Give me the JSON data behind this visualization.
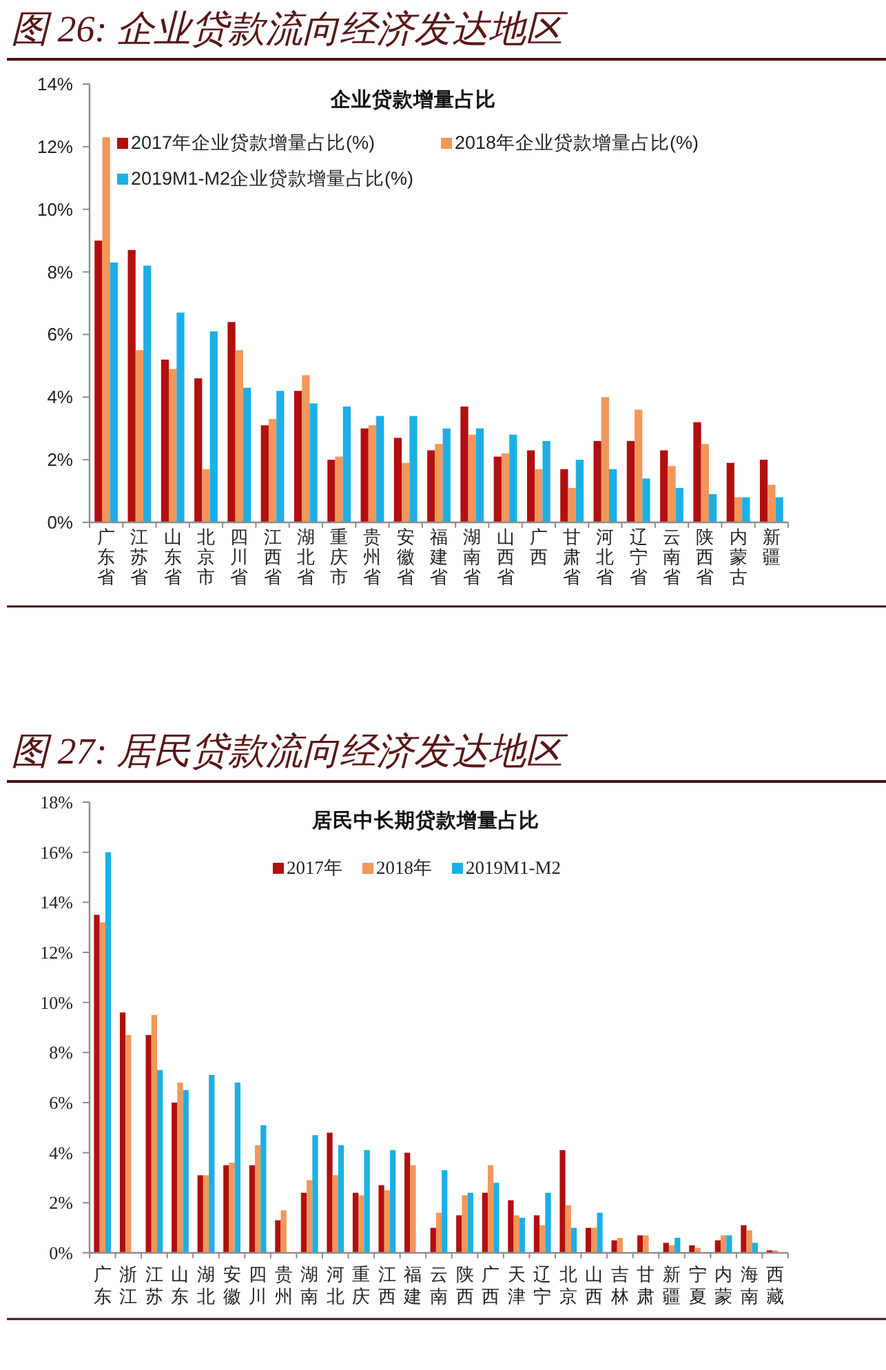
{
  "chart_data": [
    {
      "type": "bar",
      "title": "图 26: 企业贷款流向经济发达地区",
      "subtitle": "企业贷款增量占比",
      "categories": [
        "广东省",
        "江苏省",
        "山东省",
        "北京市",
        "四川省",
        "江西省",
        "湖北省",
        "重庆市",
        "贵州省",
        "安徽省",
        "福建省",
        "湖南省",
        "山西省",
        "广西",
        "甘肃省",
        "河北省",
        "辽宁省",
        "云南省",
        "陕西省",
        "内蒙古",
        "新疆"
      ],
      "series": [
        {
          "name": "2017年企业贷款增量占比(%)",
          "color": "#b20f0f",
          "values": [
            9.0,
            8.7,
            5.2,
            4.6,
            6.4,
            3.1,
            4.2,
            2.0,
            3.0,
            2.7,
            2.3,
            3.7,
            2.1,
            2.3,
            1.7,
            2.6,
            2.6,
            2.3,
            3.2,
            1.9,
            2.0
          ]
        },
        {
          "name": "2018年企业贷款增量占比(%)",
          "color": "#f2975a",
          "values": [
            12.3,
            5.5,
            4.9,
            1.7,
            5.5,
            3.3,
            4.7,
            2.1,
            3.1,
            1.9,
            2.5,
            2.8,
            2.2,
            1.7,
            1.1,
            4.0,
            3.6,
            1.8,
            2.5,
            0.8,
            1.2
          ]
        },
        {
          "name": "2019M1-M2企业贷款增量占比(%)",
          "color": "#1cafe6",
          "values": [
            8.3,
            8.2,
            6.7,
            6.1,
            4.3,
            4.2,
            3.8,
            3.7,
            3.4,
            3.4,
            3.0,
            3.0,
            2.8,
            2.6,
            2.0,
            1.7,
            1.4,
            1.1,
            0.9,
            0.8,
            0.8
          ]
        }
      ],
      "ylim": [
        0,
        14
      ],
      "yticks": [
        {
          "value": 0,
          "label": "0%"
        },
        {
          "value": 2,
          "label": "2%"
        },
        {
          "value": 4,
          "label": "4%"
        },
        {
          "value": 6,
          "label": "6%"
        },
        {
          "value": 8,
          "label": "8%"
        },
        {
          "value": 10,
          "label": "10%"
        },
        {
          "value": 12,
          "label": "12%"
        },
        {
          "value": 14,
          "label": "14%"
        }
      ],
      "legend": "top"
    },
    {
      "type": "bar",
      "title": "图 27: 居民贷款流向经济发达地区",
      "subtitle": "居民中长期贷款增量占比",
      "categories": [
        "广东",
        "浙江",
        "江苏",
        "山东",
        "湖北",
        "安徽",
        "四川",
        "贵州",
        "湖南",
        "河北",
        "重庆",
        "江西",
        "福建",
        "云南",
        "陕西",
        "广西",
        "天津",
        "辽宁",
        "北京",
        "山西",
        "吉林",
        "甘肃",
        "新疆",
        "宁夏",
        "内蒙",
        "海南",
        "西藏"
      ],
      "series": [
        {
          "name": "2017年",
          "color": "#b20f0f",
          "values": [
            13.5,
            9.6,
            8.7,
            6.0,
            3.1,
            3.5,
            3.5,
            1.3,
            2.4,
            4.8,
            2.4,
            2.7,
            4.0,
            1.0,
            1.5,
            2.4,
            2.1,
            1.5,
            4.1,
            1.0,
            0.5,
            0.7,
            0.4,
            0.3,
            0.5,
            1.1,
            0.1
          ]
        },
        {
          "name": "2018年",
          "color": "#f2975a",
          "values": [
            13.2,
            8.7,
            9.5,
            6.8,
            3.1,
            3.6,
            4.3,
            1.7,
            2.9,
            3.1,
            2.3,
            2.5,
            3.5,
            1.6,
            2.3,
            3.5,
            1.5,
            1.1,
            1.9,
            1.0,
            0.6,
            0.7,
            0.3,
            0.2,
            0.7,
            0.9,
            0.1
          ]
        },
        {
          "name": "2019M1-M2",
          "color": "#1cafe6",
          "values": [
            16.0,
            null,
            7.3,
            6.5,
            7.1,
            6.8,
            5.1,
            null,
            4.7,
            4.3,
            4.1,
            4.1,
            null,
            3.3,
            2.4,
            2.8,
            1.4,
            2.4,
            1.0,
            1.6,
            null,
            null,
            0.6,
            null,
            0.7,
            0.4,
            null
          ]
        }
      ],
      "ylim": [
        0,
        18
      ],
      "yticks": [
        {
          "value": 0,
          "label": "0%"
        },
        {
          "value": 2,
          "label": "2%"
        },
        {
          "value": 4,
          "label": "4%"
        },
        {
          "value": 6,
          "label": "6%"
        },
        {
          "value": 8,
          "label": "8%"
        },
        {
          "value": 10,
          "label": "10%"
        },
        {
          "value": 12,
          "label": "12%"
        },
        {
          "value": 14,
          "label": "14%"
        },
        {
          "value": 16,
          "label": "16%"
        },
        {
          "value": 18,
          "label": "18%"
        }
      ],
      "legend": "top"
    }
  ]
}
